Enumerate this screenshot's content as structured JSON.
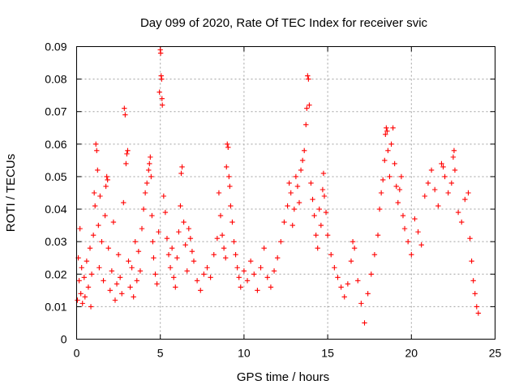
{
  "chart_data": {
    "type": "scatter",
    "title": "Day 099 of 2020, Rate Of TEC Index for receiver svic",
    "xlabel": "GPS time / hours",
    "ylabel": "ROTI / TECUs",
    "xlim": [
      0,
      25
    ],
    "ylim": [
      0,
      0.09
    ],
    "xticks": [
      0,
      5,
      10,
      15,
      20,
      25
    ],
    "xtick_labels": [
      "0",
      "5",
      "10",
      "15",
      "20",
      "25"
    ],
    "yticks": [
      0,
      0.01,
      0.02,
      0.03,
      0.04,
      0.05,
      0.06,
      0.07,
      0.08,
      0.09
    ],
    "ytick_labels": [
      "0",
      "0.01",
      "0.02",
      "0.03",
      "0.04",
      "0.05",
      "0.06",
      "0.07",
      "0.08",
      "0.09"
    ],
    "grid": true,
    "marker": "+",
    "color": "#ff0000",
    "series": [
      {
        "points": [
          [
            0.05,
            0.012
          ],
          [
            0.1,
            0.025
          ],
          [
            0.15,
            0.018
          ],
          [
            0.2,
            0.034
          ],
          [
            0.25,
            0.014
          ],
          [
            0.3,
            0.022
          ],
          [
            0.35,
            0.011
          ],
          [
            0.45,
            0.019
          ],
          [
            0.5,
            0.013
          ],
          [
            0.6,
            0.024
          ],
          [
            0.7,
            0.016
          ],
          [
            0.8,
            0.028
          ],
          [
            0.85,
            0.01
          ],
          [
            0.9,
            0.02
          ],
          [
            1.0,
            0.032
          ],
          [
            1.05,
            0.045
          ],
          [
            1.1,
            0.041
          ],
          [
            1.15,
            0.06
          ],
          [
            1.2,
            0.058
          ],
          [
            1.25,
            0.052
          ],
          [
            1.3,
            0.035
          ],
          [
            1.35,
            0.022
          ],
          [
            1.4,
            0.044
          ],
          [
            1.5,
            0.03
          ],
          [
            1.6,
            0.018
          ],
          [
            1.7,
            0.038
          ],
          [
            1.75,
            0.047
          ],
          [
            1.8,
            0.05
          ],
          [
            1.85,
            0.049
          ],
          [
            1.9,
            0.028
          ],
          [
            2.0,
            0.015
          ],
          [
            2.1,
            0.021
          ],
          [
            2.2,
            0.036
          ],
          [
            2.3,
            0.012
          ],
          [
            2.4,
            0.017
          ],
          [
            2.5,
            0.026
          ],
          [
            2.6,
            0.019
          ],
          [
            2.7,
            0.014
          ],
          [
            2.8,
            0.042
          ],
          [
            2.85,
            0.071
          ],
          [
            2.9,
            0.069
          ],
          [
            2.95,
            0.054
          ],
          [
            3.0,
            0.057
          ],
          [
            3.05,
            0.058
          ],
          [
            3.1,
            0.024
          ],
          [
            3.2,
            0.016
          ],
          [
            3.3,
            0.022
          ],
          [
            3.4,
            0.013
          ],
          [
            3.5,
            0.03
          ],
          [
            3.6,
            0.018
          ],
          [
            3.7,
            0.027
          ],
          [
            3.8,
            0.021
          ],
          [
            3.9,
            0.034
          ],
          [
            4.0,
            0.04
          ],
          [
            4.1,
            0.045
          ],
          [
            4.2,
            0.048
          ],
          [
            4.3,
            0.052
          ],
          [
            4.35,
            0.054
          ],
          [
            4.4,
            0.056
          ],
          [
            4.45,
            0.05
          ],
          [
            4.5,
            0.038
          ],
          [
            4.55,
            0.03
          ],
          [
            4.6,
            0.025
          ],
          [
            4.7,
            0.02
          ],
          [
            4.8,
            0.017
          ],
          [
            4.9,
            0.033
          ],
          [
            4.95,
            0.076
          ],
          [
            5.0,
            0.089
          ],
          [
            5.02,
            0.088
          ],
          [
            5.05,
            0.081
          ],
          [
            5.08,
            0.08
          ],
          [
            5.1,
            0.074
          ],
          [
            5.12,
            0.072
          ],
          [
            5.2,
            0.044
          ],
          [
            5.3,
            0.039
          ],
          [
            5.4,
            0.031
          ],
          [
            5.5,
            0.026
          ],
          [
            5.6,
            0.022
          ],
          [
            5.7,
            0.028
          ],
          [
            5.8,
            0.019
          ],
          [
            5.9,
            0.016
          ],
          [
            6.0,
            0.025
          ],
          [
            6.1,
            0.033
          ],
          [
            6.2,
            0.041
          ],
          [
            6.25,
            0.051
          ],
          [
            6.3,
            0.053
          ],
          [
            6.4,
            0.036
          ],
          [
            6.5,
            0.029
          ],
          [
            6.6,
            0.021
          ],
          [
            6.7,
            0.034
          ],
          [
            6.8,
            0.031
          ],
          [
            6.9,
            0.027
          ],
          [
            7.0,
            0.024
          ],
          [
            7.2,
            0.018
          ],
          [
            7.4,
            0.015
          ],
          [
            7.6,
            0.02
          ],
          [
            7.8,
            0.022
          ],
          [
            8.0,
            0.019
          ],
          [
            8.2,
            0.026
          ],
          [
            8.4,
            0.031
          ],
          [
            8.5,
            0.045
          ],
          [
            8.6,
            0.038
          ],
          [
            8.7,
            0.032
          ],
          [
            8.8,
            0.028
          ],
          [
            8.9,
            0.025
          ],
          [
            8.95,
            0.053
          ],
          [
            9.0,
            0.06
          ],
          [
            9.05,
            0.059
          ],
          [
            9.1,
            0.05
          ],
          [
            9.15,
            0.047
          ],
          [
            9.2,
            0.041
          ],
          [
            9.3,
            0.036
          ],
          [
            9.4,
            0.03
          ],
          [
            9.5,
            0.026
          ],
          [
            9.6,
            0.022
          ],
          [
            9.7,
            0.019
          ],
          [
            9.8,
            0.016
          ],
          [
            10.0,
            0.021
          ],
          [
            10.2,
            0.018
          ],
          [
            10.4,
            0.024
          ],
          [
            10.6,
            0.02
          ],
          [
            10.8,
            0.015
          ],
          [
            11.0,
            0.022
          ],
          [
            11.2,
            0.028
          ],
          [
            11.4,
            0.019
          ],
          [
            11.6,
            0.016
          ],
          [
            11.8,
            0.021
          ],
          [
            12.0,
            0.025
          ],
          [
            12.2,
            0.03
          ],
          [
            12.4,
            0.036
          ],
          [
            12.6,
            0.041
          ],
          [
            12.7,
            0.048
          ],
          [
            12.8,
            0.045
          ],
          [
            12.9,
            0.035
          ],
          [
            13.0,
            0.04
          ],
          [
            13.1,
            0.05
          ],
          [
            13.2,
            0.047
          ],
          [
            13.3,
            0.042
          ],
          [
            13.4,
            0.052
          ],
          [
            13.5,
            0.055
          ],
          [
            13.6,
            0.058
          ],
          [
            13.7,
            0.066
          ],
          [
            13.75,
            0.071
          ],
          [
            13.8,
            0.081
          ],
          [
            13.85,
            0.08
          ],
          [
            13.9,
            0.072
          ],
          [
            14.0,
            0.048
          ],
          [
            14.1,
            0.043
          ],
          [
            14.2,
            0.038
          ],
          [
            14.3,
            0.032
          ],
          [
            14.4,
            0.028
          ],
          [
            14.5,
            0.04
          ],
          [
            14.6,
            0.035
          ],
          [
            14.7,
            0.046
          ],
          [
            14.75,
            0.051
          ],
          [
            14.8,
            0.044
          ],
          [
            14.9,
            0.039
          ],
          [
            15.0,
            0.032
          ],
          [
            15.2,
            0.026
          ],
          [
            15.4,
            0.022
          ],
          [
            15.6,
            0.019
          ],
          [
            15.8,
            0.016
          ],
          [
            16.0,
            0.013
          ],
          [
            16.2,
            0.017
          ],
          [
            16.4,
            0.024
          ],
          [
            16.5,
            0.03
          ],
          [
            16.6,
            0.028
          ],
          [
            16.8,
            0.018
          ],
          [
            17.0,
            0.011
          ],
          [
            17.2,
            0.005
          ],
          [
            17.4,
            0.014
          ],
          [
            17.6,
            0.02
          ],
          [
            17.8,
            0.026
          ],
          [
            18.0,
            0.032
          ],
          [
            18.1,
            0.04
          ],
          [
            18.2,
            0.045
          ],
          [
            18.3,
            0.049
          ],
          [
            18.4,
            0.055
          ],
          [
            18.45,
            0.063
          ],
          [
            18.5,
            0.065
          ],
          [
            18.55,
            0.064
          ],
          [
            18.6,
            0.058
          ],
          [
            18.7,
            0.05
          ],
          [
            18.8,
            0.06
          ],
          [
            18.9,
            0.065
          ],
          [
            19.0,
            0.054
          ],
          [
            19.1,
            0.047
          ],
          [
            19.2,
            0.042
          ],
          [
            19.3,
            0.046
          ],
          [
            19.4,
            0.05
          ],
          [
            19.5,
            0.038
          ],
          [
            19.6,
            0.034
          ],
          [
            19.8,
            0.03
          ],
          [
            20.0,
            0.026
          ],
          [
            20.2,
            0.037
          ],
          [
            20.4,
            0.033
          ],
          [
            20.6,
            0.029
          ],
          [
            20.8,
            0.044
          ],
          [
            21.0,
            0.048
          ],
          [
            21.2,
            0.052
          ],
          [
            21.4,
            0.046
          ],
          [
            21.6,
            0.041
          ],
          [
            21.8,
            0.054
          ],
          [
            21.9,
            0.053
          ],
          [
            22.0,
            0.05
          ],
          [
            22.2,
            0.045
          ],
          [
            22.4,
            0.048
          ],
          [
            22.5,
            0.056
          ],
          [
            22.55,
            0.058
          ],
          [
            22.6,
            0.052
          ],
          [
            22.8,
            0.039
          ],
          [
            23.0,
            0.036
          ],
          [
            23.2,
            0.043
          ],
          [
            23.4,
            0.045
          ],
          [
            23.5,
            0.031
          ],
          [
            23.6,
            0.024
          ],
          [
            23.7,
            0.018
          ],
          [
            23.8,
            0.014
          ],
          [
            23.9,
            0.01
          ],
          [
            24.0,
            0.008
          ]
        ]
      }
    ]
  }
}
